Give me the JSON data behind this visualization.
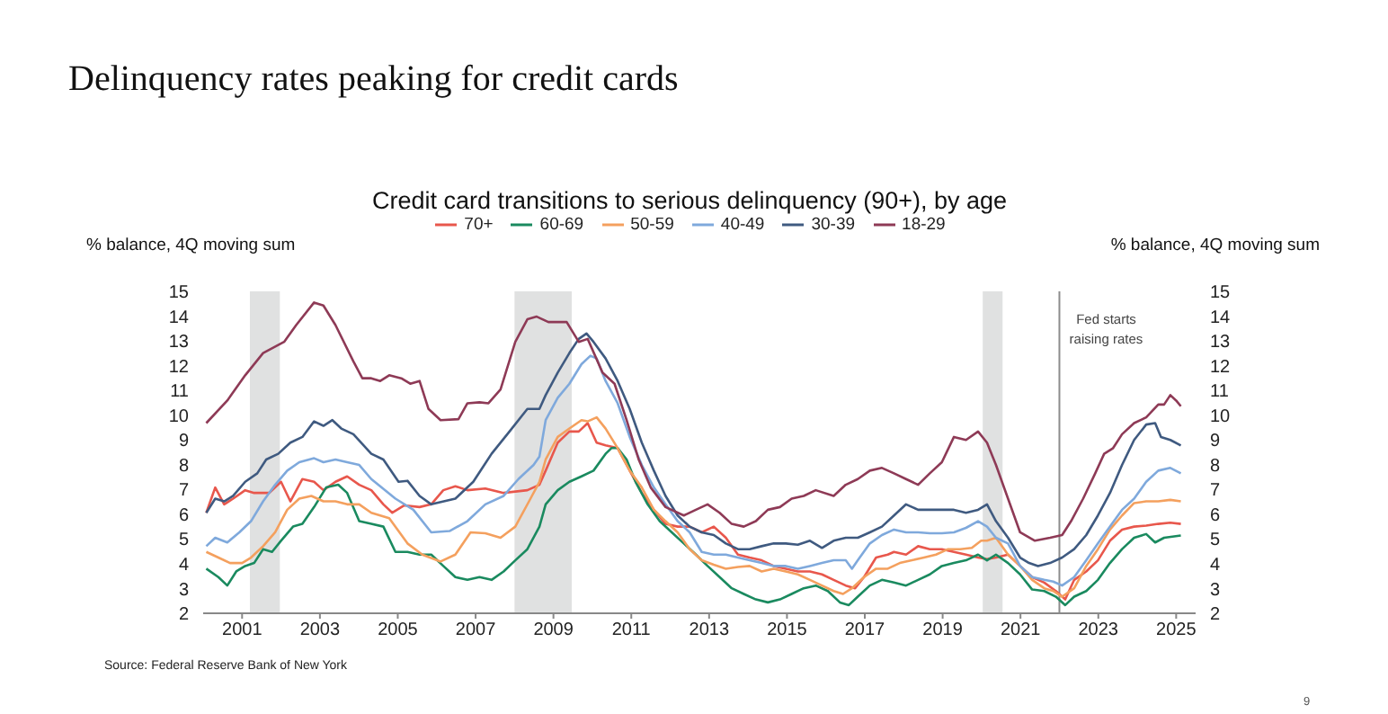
{
  "chart_data": {
    "type": "line",
    "title": "Delinquency rates peaking for credit cards",
    "subtitle": "Credit card transitions to serious delinquency (90+), by age",
    "ylabel": "% balance, 4Q moving sum",
    "y2label": "% balance, 4Q moving sum",
    "annotations": [
      "Source: Federal Reserve Bank of New York",
      "9"
    ],
    "xlim": [
      2000,
      2025.5
    ],
    "xticks": [
      2001,
      2003,
      2005,
      2007,
      2009,
      2011,
      2013,
      2015,
      2017,
      2019,
      2021,
      2023,
      2025
    ],
    "ylim": [
      2,
      15
    ],
    "yticks": [
      2,
      3,
      4,
      5,
      6,
      7,
      8,
      9,
      10,
      11,
      12,
      13,
      14,
      15
    ],
    "y2lim": [
      2,
      15
    ],
    "y2ticks": [
      2,
      3,
      4,
      5,
      6,
      7,
      8,
      9,
      10,
      11,
      12,
      13,
      14,
      15
    ],
    "legend": "top",
    "marker": "none",
    "line_style": "solid",
    "bands": [
      {
        "axis": "x",
        "from": 2001.2,
        "to": 2001.97,
        "color": "#e0e1e1"
      },
      {
        "axis": "x",
        "from": 2008.0,
        "to": 2009.47,
        "color": "#e0e1e1"
      },
      {
        "axis": "x",
        "from": 2020.03,
        "to": 2020.54,
        "color": "#e0e1e1"
      }
    ],
    "ref_lines": [
      {
        "axis": "x",
        "value": 2022.0,
        "label": "Fed starts raising rates",
        "color": "#8c8c8c"
      }
    ],
    "series": [
      {
        "name": "70+",
        "color": "#e8574c",
        "x": [
          2000.08,
          2000.31,
          2000.54,
          2000.77,
          2001.08,
          2001.31,
          2001.7,
          2002.0,
          2002.24,
          2002.55,
          2002.85,
          2003.09,
          2003.4,
          2003.7,
          2004.01,
          2004.32,
          2004.63,
          2004.86,
          2005.17,
          2005.56,
          2005.86,
          2006.17,
          2006.48,
          2006.79,
          2007.25,
          2007.72,
          2008.33,
          2008.64,
          2008.8,
          2009.11,
          2009.41,
          2009.65,
          2009.88,
          2010.11,
          2010.34,
          2010.65,
          2010.96,
          2011.27,
          2011.58,
          2011.88,
          2012.19,
          2012.5,
          2012.81,
          2013.12,
          2013.43,
          2013.74,
          2014.04,
          2014.35,
          2014.66,
          2014.97,
          2015.28,
          2015.59,
          2015.9,
          2016.2,
          2016.51,
          2016.75,
          2016.98,
          2017.29,
          2017.59,
          2017.75,
          2018.06,
          2018.37,
          2018.67,
          2018.98,
          2019.29,
          2019.6,
          2019.91,
          2020.14,
          2020.37,
          2020.68,
          2020.99,
          2021.3,
          2021.61,
          2021.91,
          2022.15,
          2022.38,
          2022.69,
          2022.99,
          2023.3,
          2023.61,
          2023.92,
          2024.23,
          2024.54,
          2024.85,
          2025.12
        ],
        "values": [
          6.06,
          7.08,
          6.4,
          6.63,
          6.97,
          6.86,
          6.86,
          7.31,
          6.52,
          7.42,
          7.31,
          6.97,
          7.31,
          7.53,
          7.19,
          6.97,
          6.4,
          6.06,
          6.36,
          6.29,
          6.4,
          6.97,
          7.13,
          6.97,
          7.04,
          6.86,
          6.97,
          7.19,
          7.76,
          8.89,
          9.34,
          9.34,
          9.68,
          8.89,
          8.78,
          8.67,
          7.76,
          6.86,
          6.18,
          5.61,
          5.5,
          5.5,
          5.27,
          5.5,
          5.05,
          4.37,
          4.25,
          4.14,
          3.91,
          3.8,
          3.69,
          3.69,
          3.57,
          3.35,
          3.12,
          3.01,
          3.46,
          4.25,
          4.37,
          4.48,
          4.37,
          4.71,
          4.59,
          4.59,
          4.48,
          4.37,
          4.25,
          4.19,
          4.25,
          4.37,
          3.91,
          3.46,
          3.24,
          2.9,
          2.56,
          3.35,
          3.69,
          4.14,
          4.93,
          5.38,
          5.5,
          5.54,
          5.61,
          5.66,
          5.61
        ]
      },
      {
        "name": "60-69",
        "color": "#1a8a5f",
        "x": [
          2000.08,
          2000.39,
          2000.62,
          2000.85,
          2001.08,
          2001.31,
          2001.54,
          2001.77,
          2002.0,
          2002.31,
          2002.55,
          2002.85,
          2003.16,
          2003.47,
          2003.7,
          2004.01,
          2004.32,
          2004.63,
          2004.94,
          2005.25,
          2005.56,
          2005.86,
          2006.17,
          2006.48,
          2006.79,
          2007.1,
          2007.41,
          2007.72,
          2008.02,
          2008.33,
          2008.64,
          2008.8,
          2009.11,
          2009.41,
          2009.72,
          2010.03,
          2010.34,
          2010.49,
          2010.65,
          2010.88,
          2011.11,
          2011.42,
          2011.73,
          2012.04,
          2012.35,
          2012.66,
          2012.96,
          2013.27,
          2013.58,
          2013.89,
          2014.2,
          2014.51,
          2014.82,
          2015.12,
          2015.43,
          2015.74,
          2016.05,
          2016.36,
          2016.59,
          2016.82,
          2017.13,
          2017.44,
          2017.75,
          2018.06,
          2018.37,
          2018.67,
          2018.98,
          2019.29,
          2019.6,
          2019.91,
          2020.14,
          2020.37,
          2020.68,
          2020.99,
          2021.3,
          2021.61,
          2021.91,
          2022.15,
          2022.38,
          2022.69,
          2022.99,
          2023.3,
          2023.61,
          2023.92,
          2024.23,
          2024.46,
          2024.69,
          2025.12
        ],
        "values": [
          3.8,
          3.46,
          3.12,
          3.69,
          3.91,
          4.03,
          4.59,
          4.48,
          4.93,
          5.5,
          5.61,
          6.29,
          7.08,
          7.19,
          6.86,
          5.72,
          5.61,
          5.5,
          4.48,
          4.48,
          4.37,
          4.37,
          3.91,
          3.46,
          3.35,
          3.46,
          3.35,
          3.69,
          4.14,
          4.59,
          5.5,
          6.4,
          6.97,
          7.31,
          7.53,
          7.76,
          8.44,
          8.67,
          8.67,
          8.21,
          7.31,
          6.4,
          5.72,
          5.27,
          4.82,
          4.37,
          3.91,
          3.46,
          3.01,
          2.78,
          2.56,
          2.44,
          2.56,
          2.78,
          3.01,
          3.12,
          2.9,
          2.44,
          2.33,
          2.67,
          3.12,
          3.35,
          3.24,
          3.12,
          3.35,
          3.57,
          3.91,
          4.03,
          4.14,
          4.37,
          4.14,
          4.37,
          4.03,
          3.57,
          2.96,
          2.9,
          2.67,
          2.33,
          2.67,
          2.9,
          3.35,
          4.03,
          4.59,
          5.05,
          5.2,
          4.86,
          5.05,
          5.14
        ]
      },
      {
        "name": "50-59",
        "color": "#f4a05e",
        "x": [
          2000.08,
          2000.39,
          2000.69,
          2001.0,
          2001.23,
          2001.54,
          2001.85,
          2002.16,
          2002.47,
          2002.78,
          2003.09,
          2003.4,
          2003.7,
          2004.01,
          2004.32,
          2004.78,
          2005.25,
          2005.63,
          2006.1,
          2006.48,
          2006.87,
          2007.25,
          2007.64,
          2008.02,
          2008.41,
          2008.64,
          2008.8,
          2009.11,
          2009.41,
          2009.72,
          2009.88,
          2010.11,
          2010.34,
          2010.65,
          2010.96,
          2011.27,
          2011.58,
          2011.88,
          2012.19,
          2012.5,
          2012.81,
          2013.12,
          2013.43,
          2013.74,
          2014.04,
          2014.35,
          2014.66,
          2014.97,
          2015.28,
          2015.59,
          2015.9,
          2016.2,
          2016.44,
          2016.67,
          2016.98,
          2017.29,
          2017.59,
          2017.9,
          2018.21,
          2018.52,
          2018.83,
          2019.14,
          2019.45,
          2019.75,
          2019.99,
          2020.14,
          2020.37,
          2020.68,
          2020.99,
          2021.3,
          2021.61,
          2021.84,
          2022.07,
          2022.38,
          2022.69,
          2022.99,
          2023.3,
          2023.61,
          2023.92,
          2024.23,
          2024.54,
          2024.85,
          2025.12
        ],
        "values": [
          4.48,
          4.25,
          4.03,
          4.03,
          4.25,
          4.71,
          5.27,
          6.18,
          6.63,
          6.74,
          6.52,
          6.52,
          6.4,
          6.4,
          6.06,
          5.84,
          4.82,
          4.37,
          4.09,
          4.37,
          5.27,
          5.23,
          5.05,
          5.5,
          6.63,
          7.31,
          8.21,
          9.12,
          9.46,
          9.8,
          9.75,
          9.91,
          9.46,
          8.67,
          7.76,
          7.08,
          6.18,
          5.72,
          5.27,
          4.59,
          4.14,
          3.96,
          3.8,
          3.87,
          3.91,
          3.69,
          3.8,
          3.69,
          3.57,
          3.35,
          3.12,
          2.9,
          2.78,
          3.01,
          3.46,
          3.8,
          3.8,
          4.03,
          4.14,
          4.25,
          4.37,
          4.59,
          4.59,
          4.64,
          4.93,
          4.93,
          5.05,
          4.37,
          3.91,
          3.35,
          3.01,
          2.9,
          2.67,
          3.01,
          3.91,
          4.59,
          5.38,
          5.95,
          6.45,
          6.52,
          6.52,
          6.58,
          6.52
        ]
      },
      {
        "name": "40-49",
        "color": "#7fa9dc",
        "x": [
          2000.08,
          2000.31,
          2000.62,
          2000.93,
          2001.23,
          2001.54,
          2001.85,
          2002.16,
          2002.47,
          2002.85,
          2003.09,
          2003.4,
          2003.7,
          2004.01,
          2004.32,
          2004.94,
          2005.4,
          2005.86,
          2006.33,
          2006.79,
          2007.25,
          2007.72,
          2008.1,
          2008.49,
          2008.64,
          2008.8,
          2009.11,
          2009.41,
          2009.72,
          2009.95,
          2010.11,
          2010.34,
          2010.65,
          2010.96,
          2011.27,
          2011.58,
          2011.88,
          2012.19,
          2012.5,
          2012.81,
          2013.12,
          2013.43,
          2013.74,
          2014.04,
          2014.35,
          2014.66,
          2014.97,
          2015.28,
          2015.59,
          2015.9,
          2016.2,
          2016.51,
          2016.67,
          2016.82,
          2017.13,
          2017.44,
          2017.75,
          2018.06,
          2018.37,
          2018.67,
          2018.98,
          2019.29,
          2019.6,
          2019.91,
          2020.14,
          2020.37,
          2020.68,
          2020.99,
          2021.3,
          2021.61,
          2021.84,
          2022.07,
          2022.38,
          2022.69,
          2022.99,
          2023.3,
          2023.61,
          2023.92,
          2024.23,
          2024.54,
          2024.85,
          2025.12
        ],
        "values": [
          4.71,
          5.05,
          4.86,
          5.27,
          5.72,
          6.52,
          7.19,
          7.76,
          8.1,
          8.26,
          8.1,
          8.21,
          8.1,
          7.99,
          7.42,
          6.63,
          6.18,
          5.27,
          5.32,
          5.72,
          6.4,
          6.74,
          7.42,
          7.99,
          8.33,
          9.8,
          10.7,
          11.27,
          12.06,
          12.4,
          12.29,
          11.38,
          10.48,
          9.12,
          7.99,
          7.08,
          6.4,
          5.72,
          5.27,
          4.48,
          4.37,
          4.37,
          4.25,
          4.14,
          4.03,
          3.91,
          3.91,
          3.8,
          3.91,
          4.03,
          4.14,
          4.14,
          3.8,
          4.14,
          4.82,
          5.16,
          5.38,
          5.27,
          5.27,
          5.23,
          5.23,
          5.27,
          5.45,
          5.72,
          5.5,
          5.05,
          4.82,
          3.91,
          3.46,
          3.35,
          3.28,
          3.12,
          3.46,
          4.14,
          4.82,
          5.5,
          6.18,
          6.63,
          7.31,
          7.76,
          7.87,
          7.65
        ]
      },
      {
        "name": "30-39",
        "color": "#3f5a80",
        "x": [
          2000.08,
          2000.31,
          2000.54,
          2000.77,
          2001.08,
          2001.39,
          2001.62,
          2001.93,
          2002.24,
          2002.55,
          2002.85,
          2003.09,
          2003.32,
          2003.55,
          2003.86,
          2004.32,
          2004.63,
          2005.02,
          2005.25,
          2005.56,
          2005.86,
          2006.48,
          2006.94,
          2007.41,
          2007.87,
          2008.33,
          2008.64,
          2008.8,
          2009.11,
          2009.41,
          2009.65,
          2009.85,
          2010.03,
          2010.34,
          2010.65,
          2010.96,
          2011.27,
          2011.58,
          2011.88,
          2012.19,
          2012.5,
          2012.81,
          2013.12,
          2013.43,
          2013.74,
          2014.04,
          2014.35,
          2014.66,
          2014.97,
          2015.28,
          2015.59,
          2015.9,
          2016.2,
          2016.51,
          2016.82,
          2017.13,
          2017.44,
          2017.75,
          2018.06,
          2018.37,
          2018.67,
          2018.98,
          2019.29,
          2019.6,
          2019.91,
          2020.14,
          2020.37,
          2020.68,
          2020.99,
          2021.22,
          2021.45,
          2021.76,
          2022.07,
          2022.38,
          2022.69,
          2022.99,
          2023.3,
          2023.61,
          2023.92,
          2024.23,
          2024.46,
          2024.61,
          2024.85,
          2025.12
        ],
        "values": [
          6.06,
          6.63,
          6.52,
          6.74,
          7.31,
          7.65,
          8.21,
          8.44,
          8.89,
          9.12,
          9.75,
          9.57,
          9.8,
          9.46,
          9.23,
          8.44,
          8.21,
          7.31,
          7.35,
          6.74,
          6.4,
          6.63,
          7.31,
          8.44,
          9.34,
          10.25,
          10.25,
          10.81,
          11.72,
          12.51,
          13.08,
          13.3,
          12.96,
          12.29,
          11.38,
          10.25,
          8.89,
          7.76,
          6.74,
          5.95,
          5.5,
          5.27,
          5.16,
          4.82,
          4.59,
          4.59,
          4.71,
          4.82,
          4.82,
          4.77,
          4.93,
          4.64,
          4.93,
          5.05,
          5.05,
          5.27,
          5.5,
          5.95,
          6.4,
          6.18,
          6.18,
          6.18,
          6.18,
          6.06,
          6.18,
          6.4,
          5.72,
          5.05,
          4.25,
          4.03,
          3.91,
          4.03,
          4.25,
          4.59,
          5.16,
          5.95,
          6.86,
          7.99,
          9.0,
          9.62,
          9.68,
          9.12,
          9.0,
          8.78
        ]
      },
      {
        "name": "18-29",
        "color": "#8e3a56",
        "x": [
          2000.08,
          2000.62,
          2001.08,
          2001.54,
          2002.08,
          2002.39,
          2002.85,
          2003.09,
          2003.4,
          2003.86,
          2004.09,
          2004.32,
          2004.55,
          2004.78,
          2005.09,
          2005.32,
          2005.56,
          2005.79,
          2006.1,
          2006.56,
          2006.79,
          2007.1,
          2007.33,
          2007.64,
          2008.02,
          2008.33,
          2008.57,
          2008.87,
          2009.34,
          2009.65,
          2009.88,
          2010.26,
          2010.57,
          2010.88,
          2011.19,
          2011.5,
          2011.88,
          2012.35,
          2012.66,
          2012.96,
          2013.27,
          2013.58,
          2013.89,
          2014.2,
          2014.51,
          2014.82,
          2015.12,
          2015.43,
          2015.74,
          2016.2,
          2016.51,
          2016.82,
          2017.13,
          2017.44,
          2017.75,
          2018.06,
          2018.37,
          2018.67,
          2018.98,
          2019.29,
          2019.6,
          2019.91,
          2020.14,
          2020.37,
          2020.68,
          2020.99,
          2021.37,
          2021.76,
          2022.07,
          2022.3,
          2022.61,
          2022.92,
          2023.15,
          2023.38,
          2023.61,
          2023.92,
          2024.23,
          2024.54,
          2024.69,
          2024.85,
          2025.0,
          2025.12
        ],
        "values": [
          9.68,
          10.59,
          11.61,
          12.51,
          12.96,
          13.64,
          14.55,
          14.43,
          13.64,
          12.17,
          11.49,
          11.49,
          11.38,
          11.61,
          11.49,
          11.27,
          11.38,
          10.25,
          9.8,
          9.84,
          10.48,
          10.52,
          10.48,
          11.04,
          12.96,
          13.87,
          13.98,
          13.76,
          13.76,
          12.96,
          13.08,
          11.72,
          11.27,
          9.8,
          8.21,
          7.08,
          6.29,
          5.95,
          6.18,
          6.4,
          6.06,
          5.61,
          5.5,
          5.72,
          6.18,
          6.29,
          6.63,
          6.74,
          6.97,
          6.74,
          7.19,
          7.42,
          7.76,
          7.87,
          7.65,
          7.42,
          7.19,
          7.65,
          8.1,
          9.12,
          9.0,
          9.34,
          8.89,
          7.99,
          6.63,
          5.27,
          4.93,
          5.05,
          5.16,
          5.72,
          6.63,
          7.65,
          8.44,
          8.67,
          9.23,
          9.68,
          9.91,
          10.43,
          10.43,
          10.81,
          10.59,
          10.36
        ]
      }
    ]
  }
}
